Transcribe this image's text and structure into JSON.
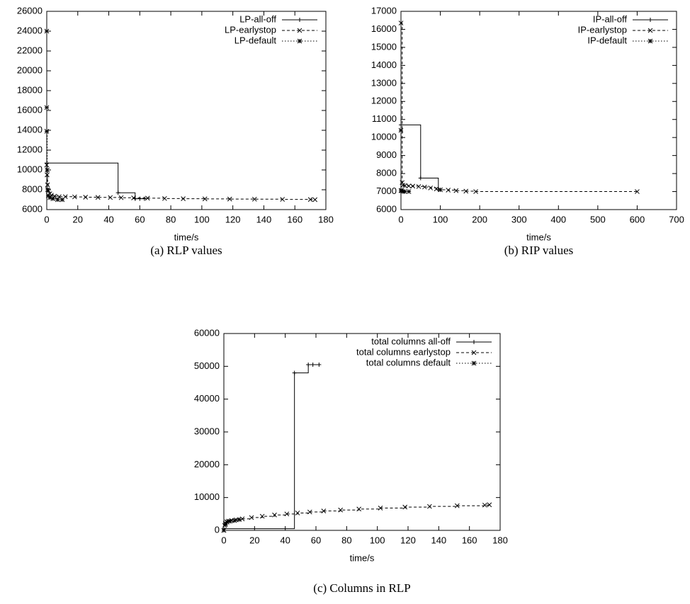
{
  "chart_data": [
    {
      "type": "line",
      "step": true,
      "caption": "(a) RLP values",
      "xlabel": "time/s",
      "xlim": [
        0,
        180
      ],
      "xticks": [
        0,
        20,
        40,
        60,
        80,
        100,
        120,
        140,
        160,
        180
      ],
      "ylim": [
        6000,
        26000
      ],
      "yticks": [
        6000,
        8000,
        10000,
        12000,
        14000,
        16000,
        18000,
        20000,
        22000,
        24000,
        26000
      ],
      "legend": "top-right",
      "series": [
        {
          "name": "LP-all-off",
          "color": "#000000",
          "line_style": "solid",
          "marker": "+",
          "x": [
            0,
            46,
            57,
            60,
            63
          ],
          "values": [
            10700,
            7700,
            7100,
            7100,
            7100
          ]
        },
        {
          "name": "LP-earlystop",
          "color": "#000000",
          "line_style": "dashed",
          "marker": "x",
          "x": [
            0,
            0.2,
            0.5,
            1,
            2,
            3,
            5,
            8,
            12,
            18,
            25,
            33,
            41,
            48,
            56,
            65,
            76,
            88,
            102,
            118,
            134,
            152,
            170,
            173
          ],
          "values": [
            10500,
            9500,
            8500,
            7900,
            7600,
            7450,
            7350,
            7300,
            7300,
            7280,
            7250,
            7230,
            7220,
            7200,
            7180,
            7150,
            7120,
            7100,
            7080,
            7060,
            7050,
            7030,
            7020,
            7000
          ]
        },
        {
          "name": "LP-default",
          "color": "#000000",
          "line_style": "dotted",
          "marker": "*",
          "x": [
            0,
            0,
            0,
            0.3,
            0.6,
            1,
            2,
            4,
            7,
            10
          ],
          "values": [
            24000,
            16300,
            13900,
            10000,
            8000,
            7400,
            7200,
            7100,
            7000,
            7000
          ]
        }
      ]
    },
    {
      "type": "line",
      "step": true,
      "caption": "(b) RIP values",
      "xlabel": "time/s",
      "xlim": [
        0,
        700
      ],
      "xticks": [
        0,
        100,
        200,
        300,
        400,
        500,
        600,
        700
      ],
      "ylim": [
        6000,
        17000
      ],
      "yticks": [
        6000,
        7000,
        8000,
        9000,
        10000,
        11000,
        12000,
        13000,
        14000,
        15000,
        16000,
        17000
      ],
      "legend": "top-right",
      "series": [
        {
          "name": "IP-all-off",
          "color": "#000000",
          "line_style": "solid",
          "marker": "+",
          "x": [
            0,
            50,
            95,
            100
          ],
          "values": [
            10700,
            7750,
            7100,
            7100
          ]
        },
        {
          "name": "IP-earlystop",
          "color": "#000000",
          "line_style": "dashed",
          "marker": "x",
          "x": [
            0,
            3,
            5,
            10,
            20,
            30,
            45,
            60,
            75,
            90,
            100,
            120,
            140,
            165,
            190,
            600
          ],
          "values": [
            16350,
            7500,
            7350,
            7330,
            7310,
            7300,
            7280,
            7250,
            7200,
            7150,
            7100,
            7080,
            7050,
            7020,
            7000,
            7000
          ]
        },
        {
          "name": "IP-default",
          "color": "#000000",
          "line_style": "dotted",
          "marker": "*",
          "x": [
            0,
            0,
            2,
            5,
            10,
            20
          ],
          "values": [
            10400,
            7050,
            7050,
            7000,
            7000,
            7000
          ]
        }
      ]
    },
    {
      "type": "line",
      "step": true,
      "caption": "(c) Columns in RLP",
      "xlabel": "time/s",
      "xlim": [
        0,
        180
      ],
      "xticks": [
        0,
        20,
        40,
        60,
        80,
        100,
        120,
        140,
        160,
        180
      ],
      "ylim": [
        0,
        60000
      ],
      "yticks": [
        0,
        10000,
        20000,
        30000,
        40000,
        50000,
        60000
      ],
      "legend": "top-right",
      "series": [
        {
          "name": "total columns all-off",
          "color": "#000000",
          "line_style": "solid",
          "marker": "+",
          "x": [
            0,
            46,
            55,
            58,
            62
          ],
          "values": [
            500,
            48000,
            50500,
            50500,
            50500
          ]
        },
        {
          "name": "total columns earlystop",
          "color": "#000000",
          "line_style": "dashed",
          "marker": "x",
          "x": [
            0,
            0.5,
            1,
            2,
            3,
            5,
            8,
            12,
            18,
            25,
            33,
            41,
            48,
            56,
            65,
            76,
            88,
            102,
            118,
            134,
            152,
            170,
            173
          ],
          "values": [
            0,
            1500,
            2200,
            2600,
            2800,
            3000,
            3200,
            3500,
            3900,
            4300,
            4700,
            5000,
            5300,
            5600,
            5900,
            6200,
            6500,
            6800,
            7100,
            7300,
            7500,
            7700,
            7800
          ]
        },
        {
          "name": "total columns default",
          "color": "#000000",
          "line_style": "dotted",
          "marker": "*",
          "x": [
            0,
            1,
            2,
            4,
            7,
            10
          ],
          "values": [
            0,
            1800,
            2500,
            2800,
            3000,
            3300
          ]
        }
      ]
    }
  ]
}
